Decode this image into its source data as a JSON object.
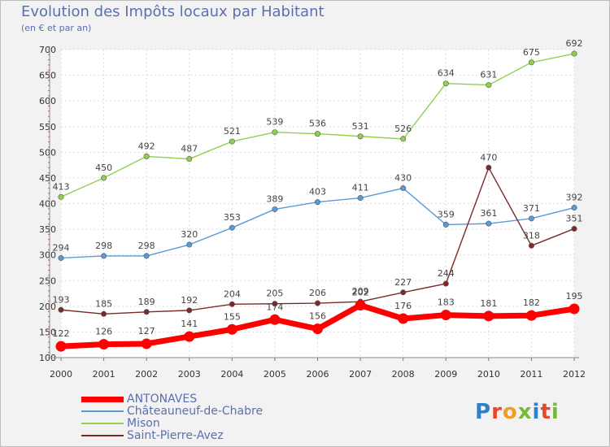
{
  "header": {
    "title": "Evolution des Impôts locaux par Habitant",
    "subtitle": "(en € et par an)"
  },
  "logo": {
    "text": "Proxiti"
  },
  "chart_data": {
    "type": "line",
    "title": "Evolution des Impôts locaux par Habitant",
    "subtitle": "(en € et par an)",
    "xlabel": "",
    "ylabel": "",
    "x": [
      "2000",
      "2001",
      "2002",
      "2003",
      "2004",
      "2005",
      "2006",
      "2007",
      "2008",
      "2009",
      "2010",
      "2011",
      "2012"
    ],
    "ylim": [
      100,
      700
    ],
    "yticks": [
      "100",
      "150",
      "200",
      "250",
      "300",
      "350",
      "400",
      "450",
      "500",
      "550",
      "600",
      "650",
      "700"
    ],
    "grid": true,
    "legend_position": "bottom-left",
    "series": [
      {
        "name": "ANTONAVES",
        "color": "#ff0000",
        "values": [
          122,
          126,
          127,
          141,
          155,
          174,
          156,
          202,
          176,
          183,
          181,
          182,
          195
        ],
        "labels": [
          "122",
          "126",
          "127",
          "141",
          "155",
          "174",
          "156",
          "202",
          "176",
          "183",
          "181",
          "182",
          "195"
        ]
      },
      {
        "name": "Châteauneuf-de-Chabre",
        "color": "#5a9ad8",
        "values": [
          294,
          298,
          298,
          320,
          353,
          389,
          403,
          411,
          430,
          359,
          361,
          371,
          392
        ],
        "labels": [
          "294",
          "298",
          "298",
          "320",
          "353",
          "389",
          "403",
          "411",
          "430",
          "359",
          "361",
          "371",
          "392"
        ]
      },
      {
        "name": "Mison",
        "color": "#8fd14f",
        "values": [
          413,
          450,
          492,
          487,
          521,
          539,
          536,
          531,
          526,
          634,
          631,
          675,
          692
        ],
        "labels": [
          "413",
          "450",
          "492",
          "487",
          "521",
          "539",
          "536",
          "531",
          "526",
          "634",
          "631",
          "675",
          "692"
        ]
      },
      {
        "name": "Saint-Pierre-Avez",
        "color": "#7a2a2a",
        "values": [
          193,
          185,
          189,
          192,
          204,
          205,
          206,
          209,
          227,
          244,
          470,
          318,
          351
        ],
        "labels": [
          "193",
          "185",
          "189",
          "192",
          "204",
          "205",
          "206",
          "209",
          "227",
          "244",
          "470",
          "318",
          "351"
        ]
      }
    ]
  }
}
